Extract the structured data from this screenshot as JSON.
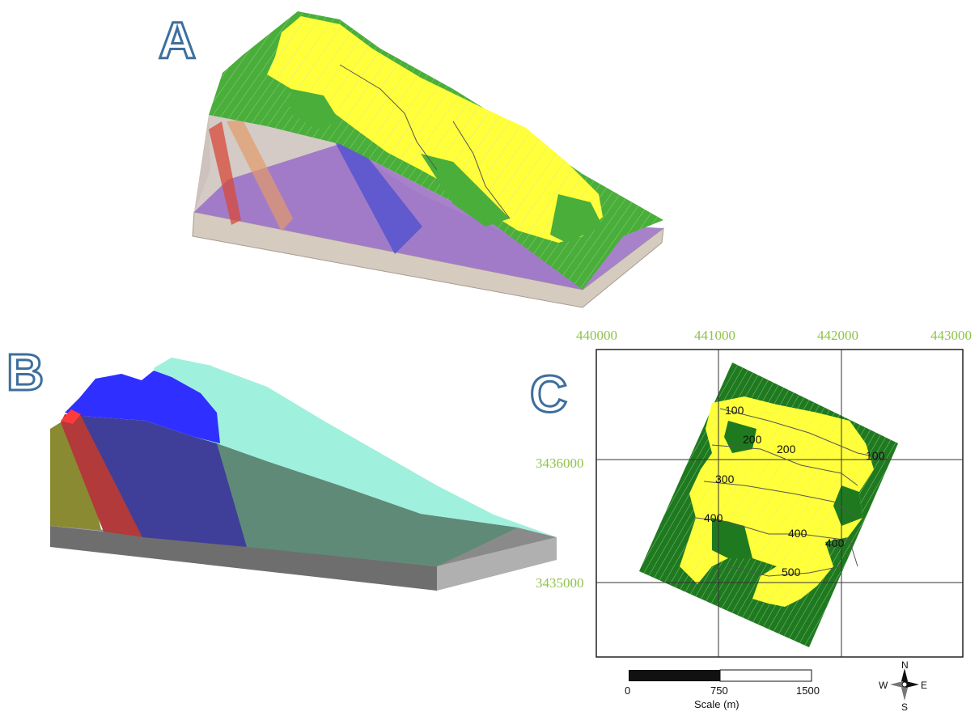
{
  "panels": {
    "a_label": "A",
    "b_label": "B",
    "c_label": "C"
  },
  "map": {
    "x_ticks": [
      "440000",
      "441000",
      "442000",
      "443000"
    ],
    "y_ticks": [
      "3436000",
      "3435000"
    ],
    "contours": [
      "100",
      "100",
      "200",
      "200",
      "300",
      "400",
      "400",
      "400",
      "500"
    ],
    "scale": {
      "labels": [
        "0",
        "750",
        "1500"
      ],
      "caption": "Scale (m)"
    },
    "compass": {
      "n": "N",
      "s": "S",
      "e": "E",
      "w": "W"
    }
  },
  "colors": {
    "green": "#4aae3a",
    "yellow": "#ffff3a",
    "purple": "#a176c7",
    "dark_green": "#1f7a1f",
    "cyan": "#9ff0dc",
    "blue": "#2f2fff",
    "olive": "#8a8a32",
    "red_layer": "#b23a3a",
    "grey_base": "#8a8a8a",
    "coord_text": "#8fc34a"
  }
}
